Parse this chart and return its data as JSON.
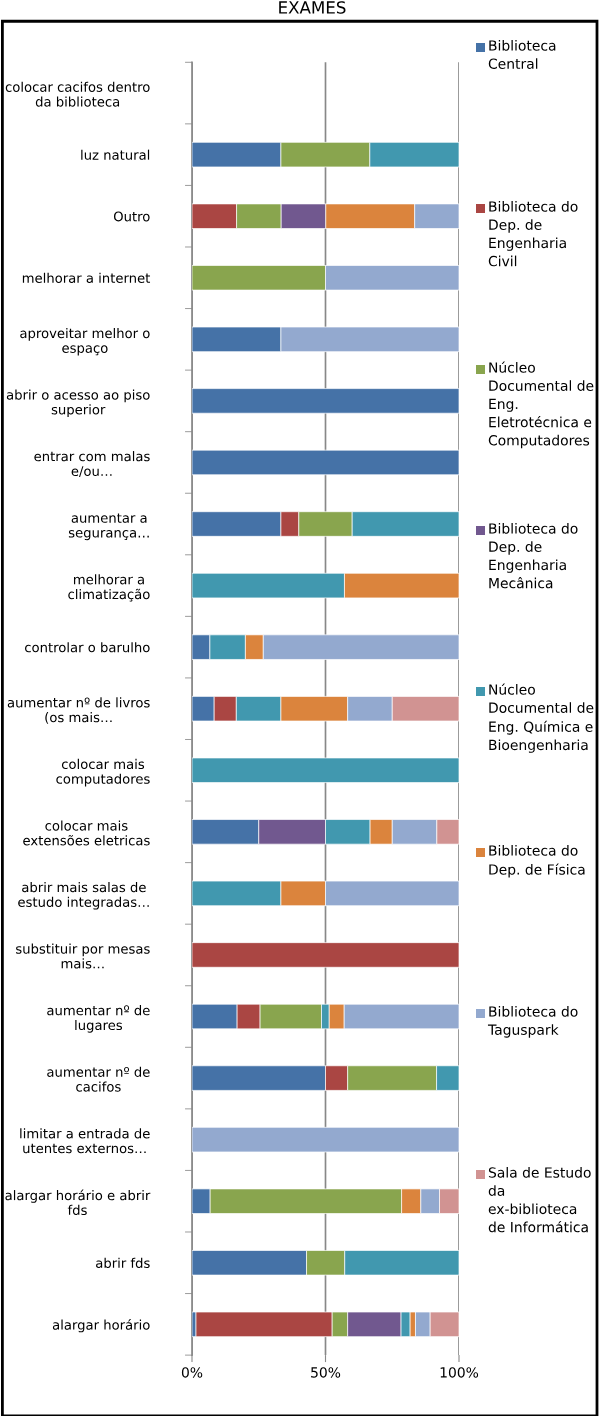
{
  "chart_data": {
    "type": "bar",
    "orientation": "horizontal",
    "stacked": true,
    "title": "EXAMES",
    "categories": [
      "colocar cacifos dentro da biblioteca",
      "luz natural",
      "Outro",
      "melhorar a internet",
      "aproveitar melhor o espaço",
      "abrir o acesso ao piso superior",
      "entrar com malas e/ou…",
      "aumentar a segurança…",
      "melhorar a climatização",
      "controlar o barulho",
      "aumentar nº de livros (os mais…",
      "colocar mais computadores",
      "colocar mais extensões eletricas",
      "abrir mais salas de estudo integradas…",
      "substituir por mesas mais…",
      "aumentar nº de lugares",
      "aumentar nº de cacifos",
      "limitar a entrada de utentes externos…",
      "alargar horário e abrir fds",
      "abrir fds",
      "alargar horário"
    ],
    "series": [
      {
        "name": "Biblioteca Central",
        "color": "#4572a7",
        "values": [
          null,
          33.3,
          null,
          null,
          33.3,
          100,
          100,
          33.3,
          null,
          6.7,
          8.3,
          null,
          25,
          null,
          null,
          16.9,
          50,
          null,
          6.8,
          42.9,
          1.5
        ]
      },
      {
        "name": "Biblioteca do Dep. de Engenharia Civil",
        "color": "#aa4643",
        "values": [
          null,
          null,
          16.7,
          null,
          null,
          null,
          null,
          6.7,
          null,
          null,
          8.3,
          null,
          null,
          null,
          100,
          8.6,
          8.3,
          null,
          null,
          null,
          51
        ]
      },
      {
        "name": "Núcleo Documental de Eng. Eletrotécnica e Computadores",
        "color": "#89a54e",
        "values": [
          null,
          33.3,
          16.7,
          50,
          null,
          null,
          null,
          20,
          null,
          null,
          null,
          null,
          null,
          null,
          null,
          23,
          33.3,
          null,
          71.7,
          14.3,
          5.8
        ]
      },
      {
        "name": "Biblioteca do Dep. de Engenharia Mecânica",
        "color": "#71588f",
        "values": [
          null,
          null,
          16.7,
          null,
          null,
          null,
          null,
          null,
          null,
          null,
          null,
          null,
          25,
          null,
          null,
          null,
          null,
          null,
          null,
          null,
          20
        ]
      },
      {
        "name": "Núcleo Documental de Eng. Química e Bioengenharia",
        "color": "#4198af",
        "values": [
          null,
          33.4,
          null,
          null,
          null,
          null,
          null,
          40,
          57.1,
          13.3,
          16.7,
          100,
          16.7,
          33.3,
          null,
          2.9,
          8.4,
          null,
          null,
          42.8,
          3.4
        ]
      },
      {
        "name": "Biblioteca do Dep. de Física",
        "color": "#db843d",
        "values": [
          null,
          null,
          33.3,
          null,
          null,
          null,
          null,
          null,
          42.9,
          6.7,
          25,
          null,
          8.3,
          16.7,
          null,
          5.6,
          null,
          null,
          7.2,
          null,
          2
        ]
      },
      {
        "name": "Biblioteca do Taguspark",
        "color": "#93a9cf",
        "values": [
          null,
          null,
          16.6,
          50,
          66.7,
          null,
          null,
          null,
          null,
          73.3,
          16.7,
          null,
          16.7,
          50,
          null,
          43,
          null,
          100,
          7,
          null,
          5.5
        ]
      },
      {
        "name": "Sala de Estudo da ex-biblioteca de Informática",
        "color": "#d19392",
        "values": [
          null,
          null,
          null,
          null,
          null,
          null,
          null,
          null,
          null,
          null,
          25,
          null,
          8.3,
          null,
          null,
          null,
          null,
          null,
          7.3,
          null,
          10.8
        ]
      }
    ],
    "xlim": [
      0,
      100
    ],
    "xticks": [
      {
        "value": 0,
        "label": "0%"
      },
      {
        "value": 50,
        "label": "50%"
      },
      {
        "value": 100,
        "label": "100%"
      }
    ],
    "grid": "x",
    "legend": "right"
  }
}
